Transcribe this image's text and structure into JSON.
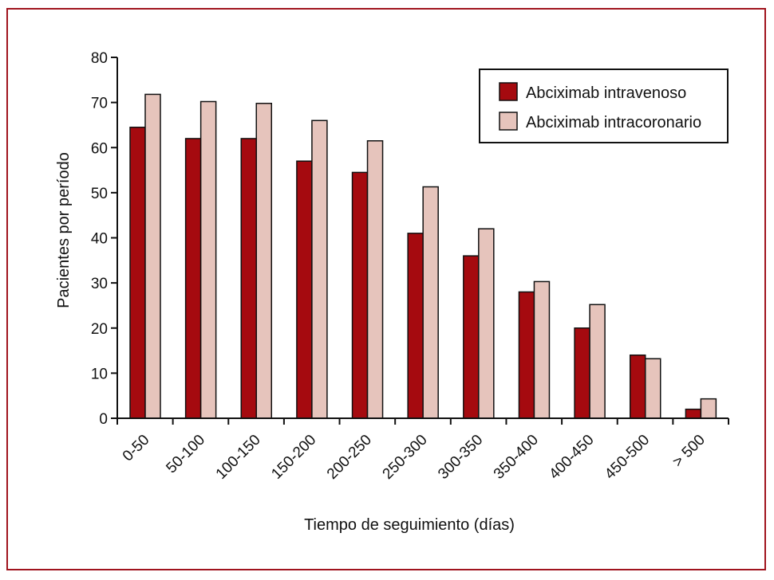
{
  "chart_data": {
    "type": "bar",
    "categories": [
      "0-50",
      "50-100",
      "100-150",
      "150-200",
      "200-250",
      "250-300",
      "300-350",
      "350-400",
      "400-450",
      "450-500",
      "> 500"
    ],
    "series": [
      {
        "name": "Abciximab intravenoso",
        "color": "#a50a0f",
        "values": [
          64.5,
          62,
          62,
          57,
          54.5,
          41,
          36,
          28,
          20,
          14,
          2
        ]
      },
      {
        "name": "Abciximab intracoronario",
        "color": "#e6c4bc",
        "values": [
          71.8,
          70.2,
          69.8,
          66,
          61.5,
          51.3,
          42,
          30.3,
          25.2,
          13.2,
          4.3
        ]
      }
    ],
    "xlabel": "Tiempo de seguimiento (días)",
    "ylabel": "Pacientes por período",
    "ylim": [
      0,
      80
    ],
    "yticks": [
      0,
      10,
      20,
      30,
      40,
      50,
      60,
      70,
      80
    ],
    "legend_position": "top-right",
    "grid": false
  },
  "frame_color": "#a0141e"
}
